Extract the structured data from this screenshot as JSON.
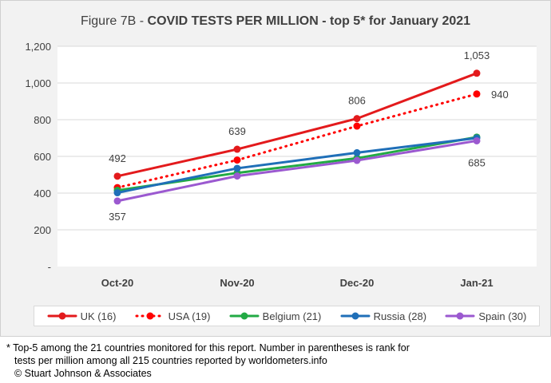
{
  "chart_data": {
    "type": "line",
    "title_prefix": "Figure 7B - ",
    "title_bold": "COVID TESTS PER MILLION - top 5* for January 2021",
    "categories": [
      "Oct-20",
      "Nov-20",
      "Dec-20",
      "Jan-21"
    ],
    "ylim": [
      0,
      1200
    ],
    "yticks": [
      "-",
      "200",
      "400",
      "600",
      "800",
      "1,000",
      "1,200"
    ],
    "grid": true,
    "legend_position": "bottom",
    "series": [
      {
        "name": "UK (16)",
        "values": [
          492,
          639,
          806,
          1053
        ],
        "color": "#e31a1c",
        "dash": false
      },
      {
        "name": "USA (19)",
        "values": [
          430,
          580,
          765,
          940
        ],
        "color": "#ff0000",
        "dash": true
      },
      {
        "name": "Belgium (21)",
        "values": [
          415,
          510,
          590,
          705
        ],
        "color": "#22aa44",
        "dash": false
      },
      {
        "name": "Russia (28)",
        "values": [
          402,
          535,
          620,
          700
        ],
        "color": "#1f6fb8",
        "dash": false
      },
      {
        "name": "Spain (30)",
        "values": [
          357,
          493,
          578,
          685
        ],
        "color": "#9b59d0",
        "dash": false
      }
    ],
    "data_labels": [
      {
        "series": 0,
        "index": 0,
        "text": "492"
      },
      {
        "series": 0,
        "index": 1,
        "text": "639"
      },
      {
        "series": 0,
        "index": 2,
        "text": "806"
      },
      {
        "series": 0,
        "index": 3,
        "text": "1,053"
      },
      {
        "series": 1,
        "index": 3,
        "text": "940"
      },
      {
        "series": 4,
        "index": 0,
        "text": "357"
      },
      {
        "series": 4,
        "index": 3,
        "text": "685"
      }
    ]
  },
  "footnote": {
    "line1": "* Top-5 among the 21 countries monitored for this report. Number in parentheses is rank for",
    "line2": "tests per million among all 215 countries reported by worldometers.info",
    "line3": "© Stuart Johnson & Associates"
  }
}
